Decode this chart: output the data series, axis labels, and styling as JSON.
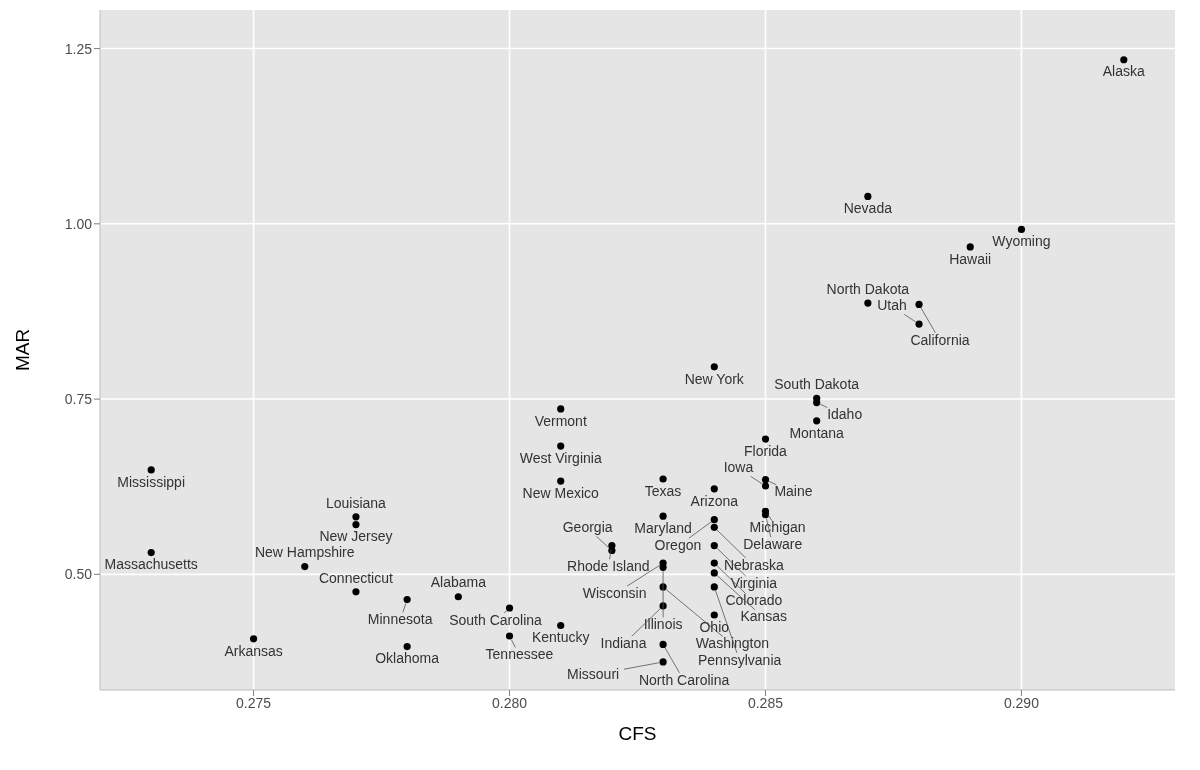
{
  "chart_data": {
    "type": "scatter",
    "xlabel": "CFS",
    "ylabel": "MAR",
    "grid": true,
    "marker": "circle",
    "xlim": [
      0.272,
      0.293
    ],
    "ylim": [
      0.335,
      1.305
    ],
    "xticks": [
      0.275,
      {
        "value": 0.28,
        "label": "0.280"
      },
      0.285,
      {
        "value": 0.29,
        "label": "0.290"
      }
    ],
    "yticks": [
      {
        "value": 0.5,
        "label": "0.50"
      },
      0.75,
      {
        "value": 1,
        "label": "1.00"
      },
      1.25
    ],
    "series": [
      {
        "color": "#000000",
        "x": [
          0.292,
          0.287,
          0.29,
          0.289,
          0.287,
          0.288,
          0.288,
          0.284,
          0.286,
          0.286,
          0.286,
          0.285,
          0.281,
          0.281,
          0.281,
          0.283,
          0.284,
          0.285,
          0.285,
          0.285,
          0.285,
          0.283,
          0.284,
          0.284,
          0.284,
          0.282,
          0.282,
          0.283,
          0.283,
          0.284,
          0.284,
          0.283,
          0.284,
          0.283,
          0.284,
          0.283,
          0.283,
          0.281,
          0.28,
          0.28,
          0.279,
          0.278,
          0.277,
          0.278,
          0.275,
          0.276,
          0.277,
          0.277,
          0.273,
          0.273
        ],
        "values": [
          1.234,
          1.039,
          0.992,
          0.967,
          0.887,
          0.885,
          0.857,
          0.796,
          0.751,
          0.745,
          0.719,
          0.693,
          0.736,
          0.683,
          0.633,
          0.636,
          0.622,
          0.635,
          0.626,
          0.59,
          0.585,
          0.583,
          0.578,
          0.567,
          0.541,
          0.541,
          0.534,
          0.516,
          0.51,
          0.516,
          0.502,
          0.482,
          0.482,
          0.455,
          0.442,
          0.4,
          0.375,
          0.427,
          0.452,
          0.412,
          0.468,
          0.464,
          0.475,
          0.397,
          0.408,
          0.511,
          0.582,
          0.571,
          0.649,
          0.531
        ]
      }
    ],
    "annotations": [
      {
        "text": "Alaska",
        "x": 0.292,
        "y": 1.234
      },
      {
        "text": "Nevada",
        "x": 0.287,
        "y": 1.039
      },
      {
        "text": "Wyoming",
        "x": 0.29,
        "y": 0.992
      },
      {
        "text": "Hawaii",
        "x": 0.289,
        "y": 0.967
      },
      {
        "text": "North Dakota",
        "x": 0.287,
        "y": 0.887
      },
      {
        "text": "California",
        "x": 0.288,
        "y": 0.885
      },
      {
        "text": "Utah",
        "x": 0.288,
        "y": 0.857
      },
      {
        "text": "New York",
        "x": 0.284,
        "y": 0.796
      },
      {
        "text": "South Dakota",
        "x": 0.286,
        "y": 0.751
      },
      {
        "text": "Idaho",
        "x": 0.286,
        "y": 0.745
      },
      {
        "text": "Montana",
        "x": 0.286,
        "y": 0.719
      },
      {
        "text": "Florida",
        "x": 0.285,
        "y": 0.693
      },
      {
        "text": "Vermont",
        "x": 0.281,
        "y": 0.736
      },
      {
        "text": "West Virginia",
        "x": 0.281,
        "y": 0.683
      },
      {
        "text": "New Mexico",
        "x": 0.281,
        "y": 0.633
      },
      {
        "text": "Texas",
        "x": 0.283,
        "y": 0.636
      },
      {
        "text": "Arizona",
        "x": 0.284,
        "y": 0.622
      },
      {
        "text": "Maine",
        "x": 0.285,
        "y": 0.635
      },
      {
        "text": "Iowa",
        "x": 0.285,
        "y": 0.626
      },
      {
        "text": "Michigan",
        "x": 0.285,
        "y": 0.59
      },
      {
        "text": "Delaware",
        "x": 0.285,
        "y": 0.585
      },
      {
        "text": "Maryland",
        "x": 0.283,
        "y": 0.583
      },
      {
        "text": "Oregon",
        "x": 0.284,
        "y": 0.578
      },
      {
        "text": "Nebraska",
        "x": 0.284,
        "y": 0.567
      },
      {
        "text": "Virginia",
        "x": 0.284,
        "y": 0.541
      },
      {
        "text": "Rhode Island",
        "x": 0.282,
        "y": 0.541
      },
      {
        "text": "Georgia",
        "x": 0.282,
        "y": 0.534
      },
      {
        "text": "Wisconsin",
        "x": 0.283,
        "y": 0.516
      },
      {
        "text": "Illinois",
        "x": 0.283,
        "y": 0.51
      },
      {
        "text": "Colorado",
        "x": 0.284,
        "y": 0.516
      },
      {
        "text": "Kansas",
        "x": 0.284,
        "y": 0.502
      },
      {
        "text": "Washington",
        "x": 0.283,
        "y": 0.482
      },
      {
        "text": "Pennsylvania",
        "x": 0.284,
        "y": 0.482
      },
      {
        "text": "Indiana",
        "x": 0.283,
        "y": 0.455
      },
      {
        "text": "Ohio",
        "x": 0.284,
        "y": 0.442
      },
      {
        "text": "North Carolina",
        "x": 0.283,
        "y": 0.4
      },
      {
        "text": "Missouri",
        "x": 0.283,
        "y": 0.375
      },
      {
        "text": "Kentucky",
        "x": 0.281,
        "y": 0.427
      },
      {
        "text": "South Carolina",
        "x": 0.28,
        "y": 0.452
      },
      {
        "text": "Tennessee",
        "x": 0.28,
        "y": 0.412
      },
      {
        "text": "Alabama",
        "x": 0.279,
        "y": 0.468
      },
      {
        "text": "Minnesota",
        "x": 0.278,
        "y": 0.464
      },
      {
        "text": "Connecticut",
        "x": 0.277,
        "y": 0.475
      },
      {
        "text": "Oklahoma",
        "x": 0.278,
        "y": 0.397
      },
      {
        "text": "Arkansas",
        "x": 0.275,
        "y": 0.408
      },
      {
        "text": "New Hampshire",
        "x": 0.276,
        "y": 0.511
      },
      {
        "text": "Louisiana",
        "x": 0.277,
        "y": 0.582
      },
      {
        "text": "New Jersey",
        "x": 0.277,
        "y": 0.571
      },
      {
        "text": "Mississippi",
        "x": 0.273,
        "y": 0.649
      },
      {
        "text": "Massachusetts",
        "x": 0.273,
        "y": 0.531
      }
    ]
  }
}
